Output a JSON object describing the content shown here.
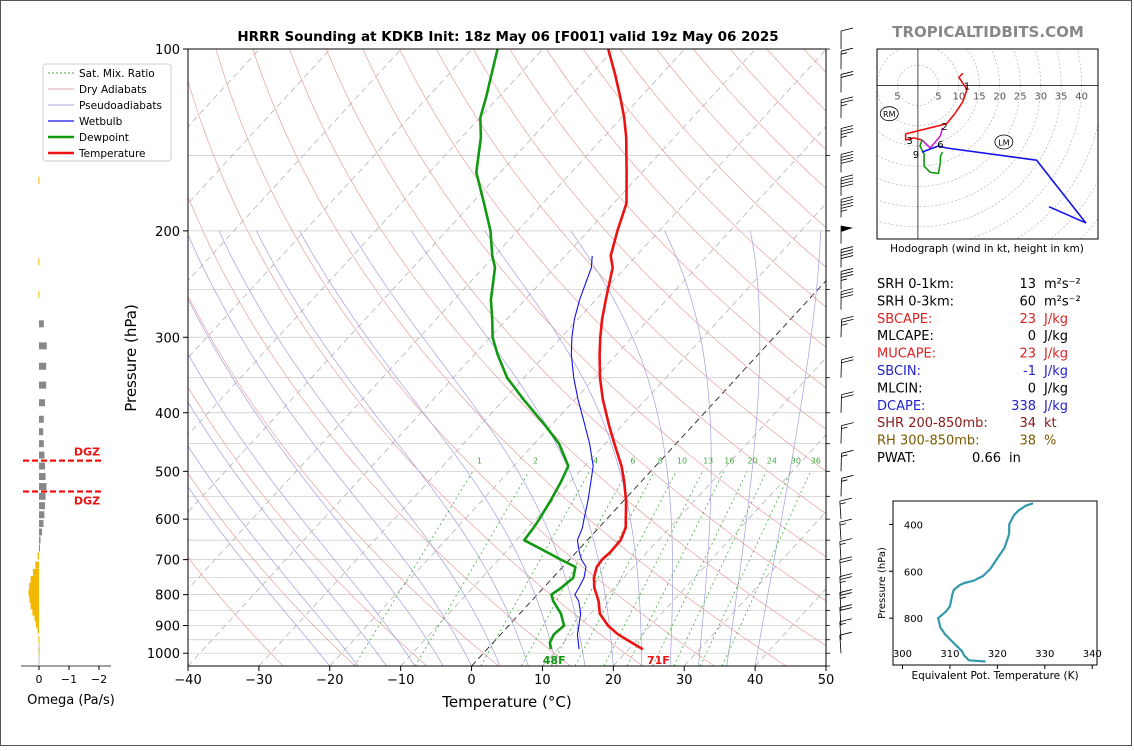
{
  "site": "TROPICALTIDBITS.COM",
  "colors": {
    "temperature": "#ee1111",
    "dewpoint": "#119911",
    "wetbulb": "#1111ee",
    "dry_adiabat": "#e8a0a0",
    "moist_adiabat": "#a0a0e0",
    "mixratio": "#44aa44",
    "isotherm": "#aaaaaa",
    "omega_pos": "#888888",
    "omega_neg": "#f5b800",
    "theta_e": "#3399aa",
    "srh": "#000000",
    "cape_red": "#dd2222",
    "cin_blue": "#2222cc",
    "shr": "#8b1a1a",
    "rh": "#7a5a00"
  },
  "chart_data": [
    {
      "id": "skewt",
      "type": "line",
      "title": "HRRR Sounding at KDKB Init: 18z May 06 [F001] valid 19z May 06 2025",
      "xlabel": "Temperature (°C)",
      "ylabel": "Pressure (hPa)",
      "xlim": [
        -40,
        50
      ],
      "ylim": [
        1050,
        100
      ],
      "log_y": true,
      "x_ticks": [
        -40,
        -30,
        -20,
        -10,
        0,
        10,
        20,
        30,
        40,
        50
      ],
      "x_tick_labels": [
        "−40",
        "−30",
        "−20",
        "−10",
        "0",
        "10",
        "20",
        "30",
        "40",
        "50"
      ],
      "y_ticks": [
        1000,
        900,
        800,
        700,
        600,
        500,
        400,
        300,
        200,
        100
      ],
      "legend": {
        "placement": "top-left",
        "entries": [
          "Sat. Mix. Ratio",
          "Dry Adiabats",
          "Pseudoadiabats",
          "Wetbulb",
          "Dewpoint",
          "Temperature"
        ]
      },
      "mixratio_labels": [
        "1",
        "2",
        "4",
        "6",
        "8",
        "10",
        "13",
        "16",
        "20",
        "24",
        "30",
        "36"
      ],
      "mixratio_values": [
        1,
        2,
        4,
        6,
        8,
        10,
        13,
        16,
        20,
        24,
        30,
        36
      ],
      "surface_temp_label": "71F",
      "surface_dewpoint_label": "48F",
      "series": [
        {
          "name": "Temperature",
          "pressure": [
            985,
            960,
            930,
            900,
            860,
            820,
            780,
            750,
            720,
            700,
            680,
            650,
            620,
            600,
            560,
            520,
            490,
            450,
            420,
            380,
            350,
            320,
            300,
            280,
            260,
            230,
            220,
            200,
            180,
            160,
            140,
            130,
            120,
            110,
            100
          ],
          "temp": [
            22,
            19.5,
            16.5,
            14,
            11.3,
            9.5,
            7.2,
            5.8,
            4.8,
            4.6,
            4.8,
            4.7,
            3.8,
            2.7,
            0.4,
            -2.4,
            -4.8,
            -8.7,
            -11.8,
            -16.1,
            -19.3,
            -22.4,
            -24.5,
            -26.6,
            -28.6,
            -31.8,
            -33.6,
            -35.9,
            -38.2,
            -42.2,
            -46.8,
            -49.6,
            -52.9,
            -56.6,
            -60.8
          ]
        },
        {
          "name": "Dewpoint",
          "pressure": [
            985,
            960,
            930,
            900,
            860,
            820,
            800,
            780,
            750,
            720,
            700,
            680,
            650,
            620,
            600,
            560,
            520,
            490,
            450,
            420,
            380,
            350,
            320,
            300,
            280,
            260,
            230,
            220,
            200,
            180,
            160,
            140,
            130,
            120,
            110,
            100
          ],
          "temp": [
            9,
            8,
            7.5,
            7.8,
            5.8,
            3.1,
            2.0,
            2.5,
            2.9,
            1.8,
            -1.2,
            -4.2,
            -8.9,
            -9.2,
            -9.5,
            -10.3,
            -11.3,
            -12.3,
            -16.5,
            -20.8,
            -27.3,
            -32.4,
            -36.8,
            -39.7,
            -42.1,
            -44.8,
            -48.4,
            -50.3,
            -53.8,
            -58.3,
            -63.4,
            -67.3,
            -69.9,
            -71.8,
            -74.0,
            -76.4
          ]
        },
        {
          "name": "Wetbulb",
          "pressure": [
            985,
            960,
            930,
            900,
            860,
            820,
            800,
            780,
            750,
            720,
            700,
            680,
            650,
            620,
            600,
            560,
            520,
            490,
            450,
            420,
            380,
            350,
            320,
            300,
            280,
            260,
            230,
            220
          ],
          "temp": [
            13,
            12,
            10.8,
            9.9,
            8.6,
            6.7,
            5.3,
            5.0,
            4.4,
            3.3,
            1.7,
            0.4,
            -1.4,
            -2.3,
            -3.2,
            -5.0,
            -7.1,
            -8.8,
            -12.2,
            -15.2,
            -19.6,
            -23.0,
            -26.4,
            -28.5,
            -30.5,
            -32.3,
            -34.8,
            -36.2
          ]
        }
      ],
      "wind_barbs": [
        {
          "p": 1000,
          "speed": 10
        },
        {
          "p": 950,
          "speed": 15
        },
        {
          "p": 900,
          "speed": 20
        },
        {
          "p": 850,
          "speed": 25
        },
        {
          "p": 800,
          "speed": 25
        },
        {
          "p": 750,
          "speed": 20
        },
        {
          "p": 700,
          "speed": 15
        },
        {
          "p": 650,
          "speed": 15
        },
        {
          "p": 600,
          "speed": 15
        },
        {
          "p": 550,
          "speed": 15
        },
        {
          "p": 500,
          "speed": 15
        },
        {
          "p": 450,
          "speed": 15
        },
        {
          "p": 400,
          "speed": 20
        },
        {
          "p": 350,
          "speed": 20
        },
        {
          "p": 300,
          "speed": 25
        },
        {
          "p": 270,
          "speed": 30
        },
        {
          "p": 250,
          "speed": 35
        },
        {
          "p": 230,
          "speed": 40
        },
        {
          "p": 210,
          "speed": 50
        },
        {
          "p": 190,
          "speed": 45
        },
        {
          "p": 175,
          "speed": 40
        },
        {
          "p": 160,
          "speed": 40
        },
        {
          "p": 145,
          "speed": 35
        },
        {
          "p": 130,
          "speed": 25
        },
        {
          "p": 118,
          "speed": 20
        },
        {
          "p": 108,
          "speed": 15
        },
        {
          "p": 100,
          "speed": 10
        }
      ]
    },
    {
      "id": "omega",
      "type": "bar",
      "xlabel": "Omega (Pa/s)",
      "x_ticks": [
        0,
        -1,
        -2
      ],
      "x_tick_labels": [
        "0",
        "−1",
        "−2"
      ],
      "dgz_label": "DGZ",
      "dgz_pressures": [
        480,
        540
      ],
      "levels": [
        {
          "p": 990,
          "w": 0.01
        },
        {
          "p": 950,
          "w": 0.02
        },
        {
          "p": 915,
          "w": 0.05
        },
        {
          "p": 895,
          "w": 0.1
        },
        {
          "p": 875,
          "w": 0.15
        },
        {
          "p": 855,
          "w": 0.22
        },
        {
          "p": 835,
          "w": 0.28
        },
        {
          "p": 815,
          "w": 0.32
        },
        {
          "p": 795,
          "w": 0.35
        },
        {
          "p": 775,
          "w": 0.33
        },
        {
          "p": 755,
          "w": 0.28
        },
        {
          "p": 735,
          "w": 0.2
        },
        {
          "p": 715,
          "w": 0.12
        },
        {
          "p": 690,
          "w": 0.05
        },
        {
          "p": 670,
          "w": -0.03
        },
        {
          "p": 650,
          "w": -0.05
        },
        {
          "p": 630,
          "w": -0.1
        },
        {
          "p": 610,
          "w": -0.15
        },
        {
          "p": 590,
          "w": -0.18
        },
        {
          "p": 570,
          "w": -0.2
        },
        {
          "p": 550,
          "w": -0.22
        },
        {
          "p": 530,
          "w": -0.25
        },
        {
          "p": 510,
          "w": -0.22
        },
        {
          "p": 490,
          "w": -0.2
        },
        {
          "p": 470,
          "w": -0.18
        },
        {
          "p": 450,
          "w": -0.16
        },
        {
          "p": 430,
          "w": -0.14
        },
        {
          "p": 410,
          "w": -0.16
        },
        {
          "p": 385,
          "w": -0.2
        },
        {
          "p": 360,
          "w": -0.24
        },
        {
          "p": 335,
          "w": -0.24
        },
        {
          "p": 310,
          "w": -0.26
        },
        {
          "p": 285,
          "w": -0.16
        },
        {
          "p": 255,
          "w": 0.02
        },
        {
          "p": 225,
          "w": 0.02
        },
        {
          "p": 165,
          "w": 0.02
        }
      ]
    },
    {
      "id": "hodograph",
      "type": "line",
      "caption": "Hodograph (wind in kt, height in km)",
      "ring_labels": [
        "5",
        "5",
        "10",
        "15",
        "20",
        "25",
        "30",
        "35",
        "40"
      ],
      "ring_label_values": [
        -5,
        5,
        10,
        15,
        20,
        25,
        30,
        35,
        40
      ],
      "xlim": [
        -10,
        44
      ],
      "ylim": [
        -38,
        9
      ],
      "rm_label": "RM",
      "lm_label": "LM",
      "rm": [
        -7,
        -7
      ],
      "lm": [
        21,
        -14
      ],
      "height_labels": [
        {
          "text": "1",
          "u": 12,
          "v": 0
        },
        {
          "text": "2",
          "u": 6.5,
          "v": -10
        },
        {
          "text": "3",
          "u": -2,
          "v": -13.5
        },
        {
          "text": "6",
          "u": 5.5,
          "v": -14.5
        },
        {
          "text": "9",
          "u": -0.5,
          "v": -17
        }
      ],
      "segments": [
        {
          "color": "#ee1111",
          "points": [
            [
              11,
              3
            ],
            [
              10,
              2
            ],
            [
              12,
              -1
            ],
            [
              11,
              -4
            ],
            [
              9,
              -7
            ],
            [
              7,
              -9.5
            ],
            [
              3,
              -10.5
            ],
            [
              -3,
              -12
            ],
            [
              -3,
              -13.5
            ],
            [
              -1,
              -13
            ],
            [
              1,
              -13.5
            ]
          ]
        },
        {
          "color": "#cc22cc",
          "points": [
            [
              1,
              -13.5
            ],
            [
              2,
              -14.5
            ],
            [
              3,
              -15.5
            ],
            [
              5.5,
              -12.5
            ],
            [
              6,
              -10.5
            ]
          ]
        },
        {
          "color": "#119911",
          "points": [
            [
              1,
              -13.5
            ],
            [
              0.5,
              -15
            ],
            [
              1.5,
              -17
            ],
            [
              1.5,
              -20
            ],
            [
              3,
              -21.5
            ],
            [
              5,
              -21.8
            ],
            [
              5.5,
              -19
            ],
            [
              5.5,
              -17.5
            ],
            [
              6,
              -16.5
            ]
          ]
        },
        {
          "color": "#1111ee",
          "points": [
            [
              1,
              -16.5
            ],
            [
              5,
              -15
            ],
            [
              7,
              -15.5
            ],
            [
              29,
              -18.5
            ],
            [
              41,
              -34
            ],
            [
              32,
              -30
            ]
          ]
        }
      ]
    },
    {
      "id": "thetae",
      "type": "line",
      "xlabel": "Equivalent Pot. Temperature (K)",
      "ylabel": "Pressure (hPa)",
      "xlim": [
        298,
        341
      ],
      "ylim": [
        1000,
        300
      ],
      "x_ticks": [
        300,
        310,
        320,
        330,
        340
      ],
      "y_ticks": [
        400,
        600,
        800
      ],
      "points": [
        [
          317.5,
          985
        ],
        [
          314,
          980
        ],
        [
          313,
          960
        ],
        [
          312.5,
          940
        ],
        [
          311.5,
          920
        ],
        [
          310.5,
          900
        ],
        [
          309,
          870
        ],
        [
          308,
          840
        ],
        [
          307.5,
          800
        ],
        [
          309,
          775
        ],
        [
          310,
          750
        ],
        [
          310.5,
          700
        ],
        [
          310.8,
          680
        ],
        [
          312,
          660
        ],
        [
          313,
          650
        ],
        [
          315,
          640
        ],
        [
          317,
          620
        ],
        [
          318.5,
          590
        ],
        [
          319.5,
          560
        ],
        [
          320.5,
          530
        ],
        [
          321.5,
          500
        ],
        [
          322,
          470
        ],
        [
          322.5,
          440
        ],
        [
          322.5,
          420
        ],
        [
          322.5,
          400
        ],
        [
          323,
          380
        ],
        [
          323.5,
          360
        ],
        [
          324.5,
          340
        ],
        [
          326,
          320
        ],
        [
          327.5,
          310
        ]
      ]
    }
  ],
  "indices": [
    {
      "label": "SRH 0-1km:",
      "value": "13",
      "unit": "m²s⁻²",
      "color_key": "srh"
    },
    {
      "label": "SRH 0-3km:",
      "value": "60",
      "unit": "m²s⁻²",
      "color_key": "srh"
    },
    {
      "label": "SBCAPE:",
      "value": "23",
      "unit": "J/kg",
      "color_key": "cape_red"
    },
    {
      "label": "MLCAPE:",
      "value": "0",
      "unit": "J/kg",
      "color_key": "srh"
    },
    {
      "label": "MUCAPE:",
      "value": "23",
      "unit": "J/kg",
      "color_key": "cape_red"
    },
    {
      "label": "SBCIN:",
      "value": "-1",
      "unit": "J/kg",
      "color_key": "cin_blue"
    },
    {
      "label": "MLCIN:",
      "value": "0",
      "unit": "J/kg",
      "color_key": "srh"
    },
    {
      "label": "DCAPE:",
      "value": "338",
      "unit": "J/kg",
      "color_key": "cin_blue"
    },
    {
      "label": "SHR 200-850mb:",
      "value": "34",
      "unit": "kt",
      "color_key": "shr"
    },
    {
      "label": "RH 300-850mb:",
      "value": "38",
      "unit": "%",
      "color_key": "rh"
    },
    {
      "label": "PWAT:",
      "value": "0.66",
      "unit": "in",
      "color_key": "srh"
    }
  ]
}
